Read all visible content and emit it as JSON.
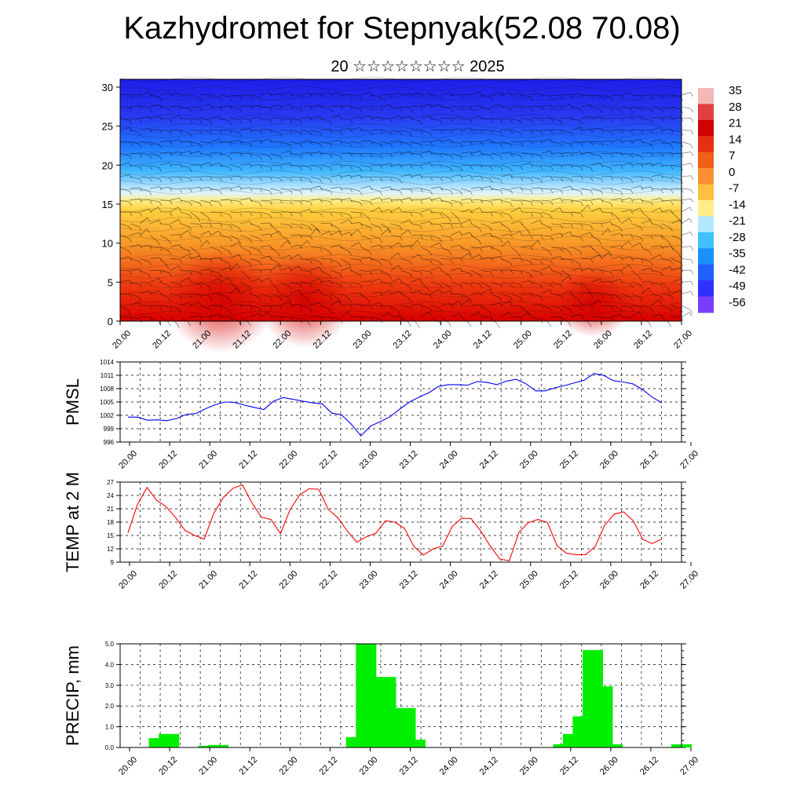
{
  "header": {
    "title": "Kazhydromet for Stepnyak(52.08 70.08)",
    "subtitle": "20 ☆☆☆☆☆☆☆☆ 2025"
  },
  "colors": {
    "pmsl_line": "#0000ff",
    "temp_line": "#ff0000",
    "precip_bar": "#00ee00",
    "section_top": "#2222ee",
    "section_mid": "#ffff99",
    "section_bottom": "#ee1111"
  },
  "time_labels": [
    "20.00",
    "20.12",
    "21.00",
    "21.12",
    "22.00",
    "22.12",
    "23.00",
    "23.12",
    "24.00",
    "24.12",
    "25.00",
    "25.12",
    "26.00",
    "26.12",
    "27.00"
  ],
  "chart_data": [
    {
      "type": "heatmap",
      "description_axis": "height",
      "x_ticks": [
        "20.00",
        "20.12",
        "21.00",
        "21.12",
        "22.00",
        "22.12",
        "23.00",
        "23.12",
        "24.00",
        "24.12",
        "25.00",
        "25.12",
        "26.00",
        "26.12",
        "27.00"
      ],
      "y_ticks": [
        "0",
        "5",
        "10",
        "15",
        "20",
        "25",
        "30"
      ],
      "ylim": [
        0,
        31
      ],
      "colorbar_labels": [
        "35",
        "28",
        "21",
        "14",
        "7",
        "0",
        "-7",
        "-14",
        "-21",
        "-28",
        "-35",
        "-42",
        "-49",
        "-56"
      ],
      "colorbar_colors": [
        "#f4b8b8",
        "#e04040",
        "#d00000",
        "#e83010",
        "#f06018",
        "#f89030",
        "#ffc040",
        "#ffee88",
        "#b0e8ff",
        "#40c0ff",
        "#1890ff",
        "#2060ff",
        "#3030ff",
        "#7a3cff"
      ]
    },
    {
      "type": "line",
      "ylabel": "PMSL",
      "ylim": [
        996,
        1014
      ],
      "y_ticks": [
        996,
        999,
        1002,
        1005,
        1008,
        1011,
        1014
      ],
      "y": [
        1001.6,
        1001.6,
        1000.9,
        1001.0,
        1000.8,
        1001.3,
        1002.2,
        1002.4,
        1003.5,
        1004.4,
        1005.0,
        1004.9,
        1004.3,
        1003.8,
        1003.3,
        1005.2,
        1006.0,
        1005.6,
        1005.2,
        1004.8,
        1004.6,
        1002.5,
        1002.1,
        1000.0,
        997.4,
        999.6,
        1000.6,
        1001.7,
        1003.4,
        1005.0,
        1006.1,
        1007.1,
        1008.5,
        1008.9,
        1008.9,
        1008.8,
        1009.6,
        1009.4,
        1008.9,
        1009.7,
        1010.1,
        1009.1,
        1007.5,
        1007.5,
        1008.2,
        1008.7,
        1009.3,
        1009.9,
        1011.4,
        1011.0,
        1009.8,
        1009.5,
        1009.1,
        1007.8,
        1006.1,
        1004.8
      ]
    },
    {
      "type": "line",
      "ylabel": "TEMP at 2 M",
      "ylim": [
        9,
        27
      ],
      "y_ticks": [
        9,
        12,
        15,
        18,
        21,
        24,
        27
      ],
      "y": [
        15.6,
        22.0,
        25.8,
        22.9,
        21.5,
        19.0,
        16.1,
        15.0,
        14.2,
        20.0,
        23.5,
        25.6,
        26.4,
        22.3,
        19.1,
        18.6,
        15.4,
        20.8,
        24.1,
        25.5,
        25.4,
        20.9,
        19.0,
        16.0,
        13.5,
        14.7,
        15.5,
        18.3,
        18.0,
        16.6,
        12.5,
        10.6,
        12.0,
        12.6,
        17.0,
        18.9,
        18.8,
        16.0,
        12.6,
        9.7,
        9.3,
        15.7,
        17.9,
        18.6,
        17.9,
        12.7,
        11.0,
        10.7,
        10.7,
        12.5,
        17.3,
        19.8,
        20.3,
        18.3,
        14.1,
        13.2,
        14.2
      ]
    },
    {
      "type": "bar",
      "ylabel": "PRECIP, mm",
      "ylim": [
        0,
        5
      ],
      "y_ticks": [
        "0.0",
        "1.0",
        "2.0",
        "3.0",
        "4.0",
        "5.0"
      ],
      "bins": [
        {
          "x": 0.75,
          "v": 0.45
        },
        {
          "x": 1.0,
          "v": 0.65
        },
        {
          "x": 2.0,
          "v": 0.08
        },
        {
          "x": 2.25,
          "v": 0.12
        },
        {
          "x": 5.75,
          "v": 0.5
        },
        {
          "x": 6.0,
          "v": 5.0
        },
        {
          "x": 6.25,
          "v": 1.75
        },
        {
          "x": 6.5,
          "v": 3.4
        },
        {
          "x": 6.75,
          "v": 1.05
        },
        {
          "x": 7.0,
          "v": 1.9
        },
        {
          "x": 7.25,
          "v": 0.38
        },
        {
          "x": 11.0,
          "v": 0.15
        },
        {
          "x": 11.25,
          "v": 0.65
        },
        {
          "x": 11.5,
          "v": 1.5
        },
        {
          "x": 11.75,
          "v": 4.7
        },
        {
          "x": 12.0,
          "v": 2.95
        },
        {
          "x": 12.25,
          "v": 0.15
        },
        {
          "x": 14.0,
          "v": 0.15
        }
      ]
    }
  ]
}
